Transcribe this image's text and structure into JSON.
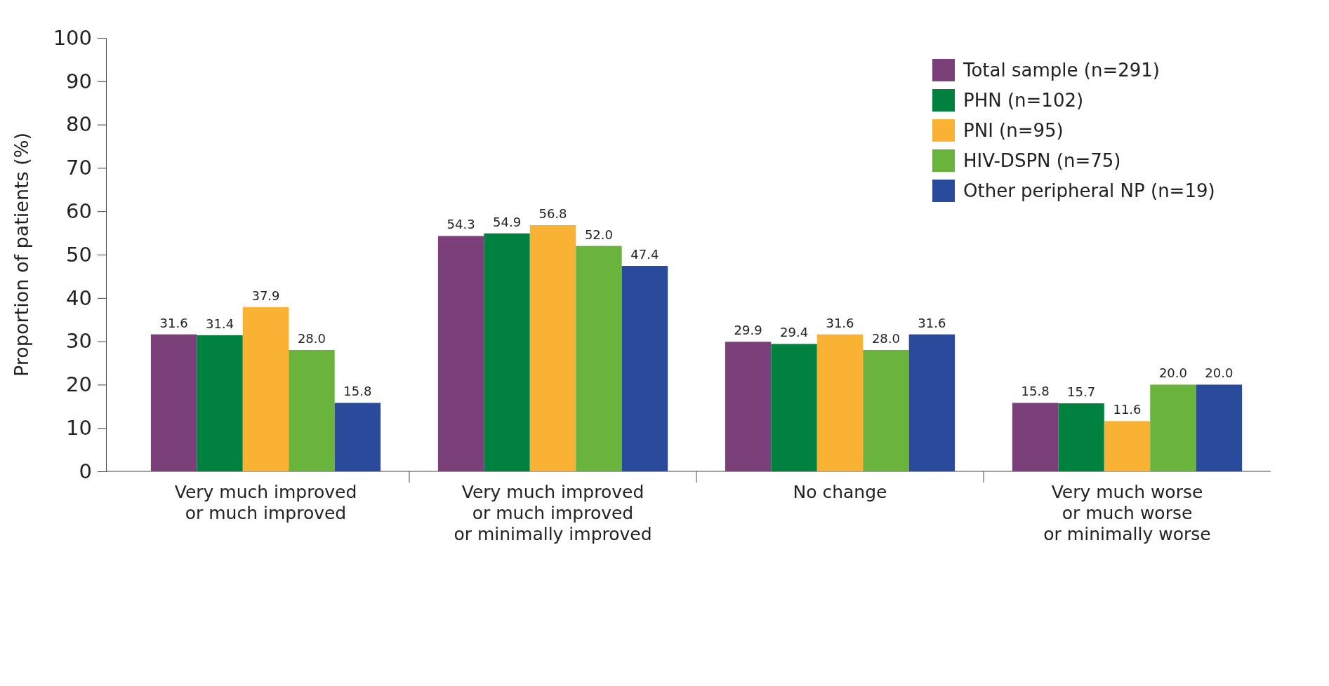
{
  "chart_data": {
    "type": "bar",
    "ylabel": "Proportion of patients (%)",
    "categories": [
      "Very much improved\nor much improved",
      "Very much improved\nor much improved\nor minimally improved",
      "No change",
      "Very much worse\nor much worse\nor minimally worse"
    ],
    "series": [
      {
        "name": "Total sample (n=291)",
        "color": "#7b3f7a",
        "values": [
          31.6,
          54.3,
          29.9,
          15.8
        ]
      },
      {
        "name": "PHN (n=102)",
        "color": "#00813f",
        "values": [
          31.4,
          54.9,
          29.4,
          15.7
        ]
      },
      {
        "name": "PNI (n=95)",
        "color": "#f9b233",
        "values": [
          37.9,
          56.8,
          31.6,
          11.6
        ]
      },
      {
        "name": "HIV-DSPN (n=75)",
        "color": "#6ab43e",
        "values": [
          28.0,
          52.0,
          28.0,
          20.0
        ]
      },
      {
        "name": "Other peripheral NP (n=19)",
        "color": "#2a4a9b",
        "values": [
          15.8,
          47.4,
          31.6,
          20.0
        ]
      }
    ],
    "value_labels": [
      [
        "31.6",
        "54.3",
        "29.9",
        "15.8"
      ],
      [
        "31.4",
        "54.9",
        "29.4",
        "15.7"
      ],
      [
        "37.9",
        "56.8",
        "31.6",
        "11.6"
      ],
      [
        "28.0",
        "52.0",
        "28.0",
        "20.0"
      ],
      [
        "15.8",
        "47.4",
        "31.6",
        "20.0"
      ]
    ],
    "ylim": [
      0,
      100
    ],
    "yticks": [
      0,
      10,
      20,
      30,
      40,
      50,
      60,
      70,
      80,
      90,
      100
    ],
    "grid": false,
    "legend": "top right"
  }
}
